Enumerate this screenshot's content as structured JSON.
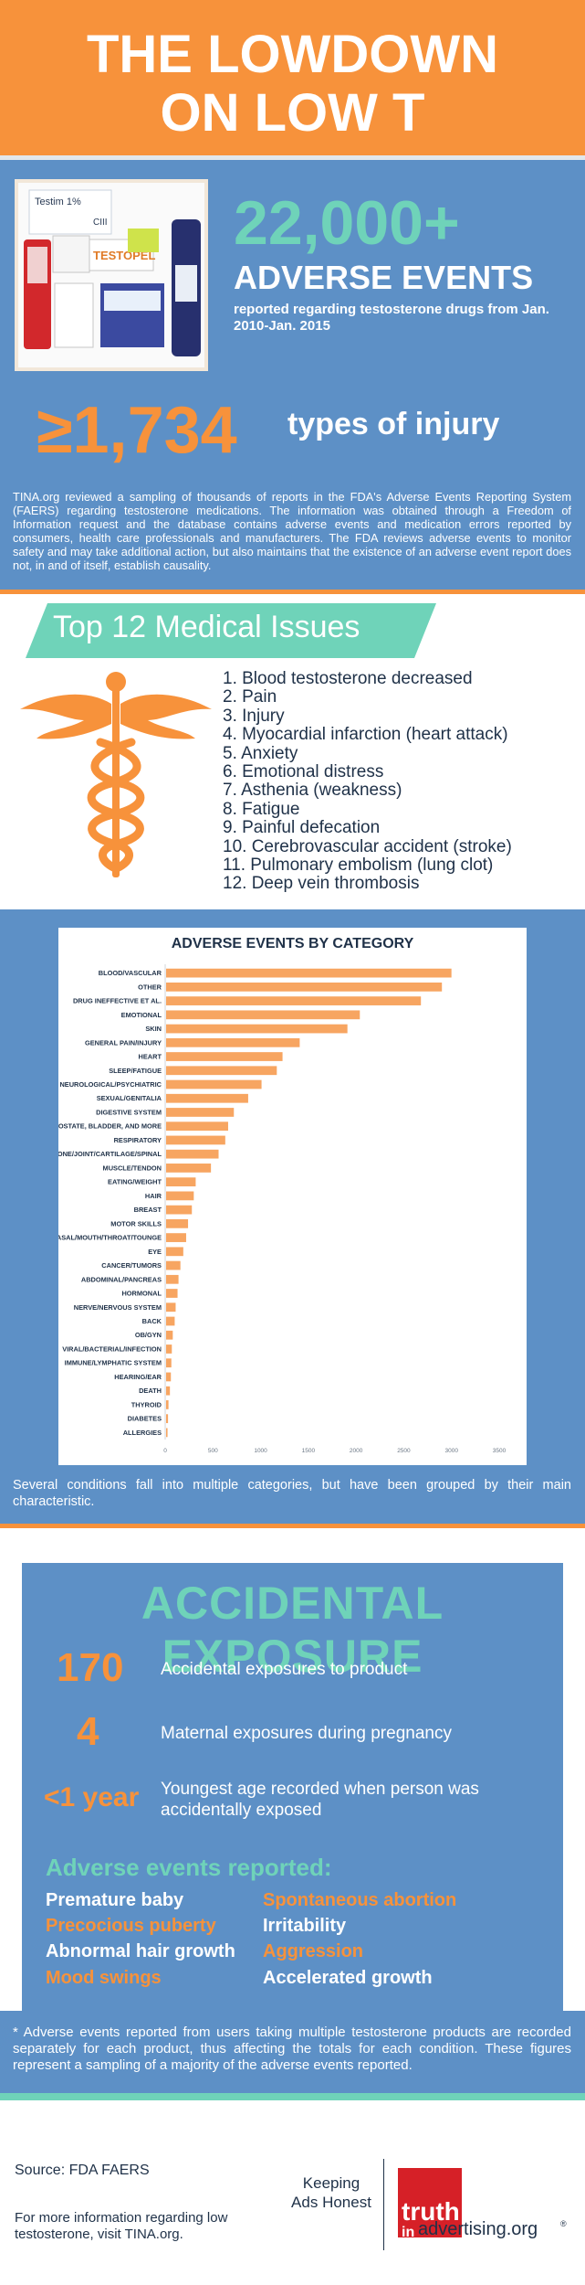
{
  "header": {
    "title_line1": "THE LOWDOWN",
    "title_line2": "ON LOW T"
  },
  "summary": {
    "adverse_events_count": "22,000+",
    "adverse_events_label": "ADVERSE EVENTS",
    "adverse_events_note": "reported regarding testosterone drugs from Jan. 2010-Jan. 2015",
    "injury_count": "≥1,734",
    "injury_label": "types of injury",
    "tina_text": "TINA.org reviewed a sampling of thousands of reports in the FDA's Adverse Events Reporting System (FAERS) regarding testosterone medications. The information was obtained through a Freedom of Information request and the database contains adverse events and medication errors reported by consumers, health care professionals and manufacturers. The FDA reviews adverse events to monitor safety and may take additional action, but also maintains that the existence of an adverse event report does not, in and of itself, establish causality."
  },
  "products": {
    "label1": "Testim 1%",
    "label2": "TESTOPEL",
    "label3": "CIII"
  },
  "issues": {
    "title": "Top 12 Medical Issues",
    "items": [
      "1. Blood testosterone decreased",
      "2. Pain",
      "3. Injury",
      "4. Myocardial infarction (heart attack)",
      "5. Anxiety",
      "6. Emotional distress",
      "7. Asthenia (weakness)",
      "8. Fatigue",
      "9. Painful defecation",
      "10. Cerebrovascular accident (stroke)",
      "11. Pulmonary embolism (lung clot)",
      "12. Deep vein thrombosis"
    ]
  },
  "chart_data": {
    "type": "bar",
    "orientation": "horizontal",
    "title": "ADVERSE EVENTS BY CATEGORY",
    "xlim": [
      0,
      3500
    ],
    "xticks": [
      0,
      500,
      1000,
      1500,
      2000,
      2500,
      3000,
      3500
    ],
    "categories": [
      "BLOOD/VASCULAR",
      "OTHER",
      "DRUG INEFFECTIVE ET AL.",
      "EMOTIONAL",
      "SKIN",
      "GENERAL PAIN/INJURY",
      "HEART",
      "SLEEP/FATIGUE",
      "NEUROLOGICAL/PSYCHIATRIC",
      "SEXUAL/GENITALIA",
      "DIGESTIVE SYSTEM",
      "PROSTATE, BLADDER, AND MORE",
      "RESPIRATORY",
      "BONE/JOINT/CARTILAGE/SPINAL",
      "MUSCLE/TENDON",
      "EATING/WEIGHT",
      "HAIR",
      "BREAST",
      "MOTOR SKILLS",
      "NASAL/MOUTH/THROAT/TOUNGE",
      "EYE",
      "CANCER/TUMORS",
      "ABDOMINAL/PANCREAS",
      "HORMONAL",
      "NERVE/NERVOUS SYSTEM",
      "BACK",
      "OB/GYN",
      "VIRAL/BACTERIAL/INFECTION",
      "IMMUNE/LYMPHATIC SYSTEM",
      "HEARING/EAR",
      "DEATH",
      "THYROID",
      "DIABETES",
      "ALLERGIES"
    ],
    "values": [
      2990,
      2890,
      2670,
      2030,
      1900,
      1400,
      1220,
      1160,
      1000,
      860,
      710,
      650,
      620,
      550,
      470,
      310,
      290,
      270,
      230,
      210,
      180,
      150,
      130,
      120,
      100,
      90,
      70,
      60,
      55,
      50,
      40,
      25,
      20,
      15
    ],
    "note": "Several conditions fall into multiple categories, but have been grouped by their main characteristic."
  },
  "accidental": {
    "title": "ACCIDENTAL EXPOSURE",
    "stats": [
      {
        "value": "170",
        "label": "Accidental exposures to product"
      },
      {
        "value": "4",
        "label": "Maternal exposures during pregnancy"
      },
      {
        "value": "<1 year",
        "label": "Youngest age recorded when person was accidentally exposed"
      }
    ],
    "events_title": "Adverse events reported:",
    "events_left": [
      "Premature baby",
      "Precocious puberty",
      "Abnormal hair growth",
      "Mood swings"
    ],
    "events_right": [
      "Spontaneous abortion",
      "Irritability",
      "Aggression",
      "Accelerated growth"
    ],
    "footnote": "* Adverse events reported from users taking multiple testosterone products are recorded separately for each product, thus affecting the totals for each condition. These figures represent a sampling of a majority of the adverse events reported."
  },
  "footer": {
    "source": "Source: FDA FAERS",
    "more_info": "For more information regarding low testosterone, visit TINA.org.",
    "tagline": "Keeping Ads Honest",
    "logo_main": "truth",
    "logo_in": "in",
    "logo_rest": "advertising.org",
    "logo_reg": "®"
  },
  "colors": {
    "orange": "#f7923b",
    "teal": "#6fd3b9",
    "blue": "#5d90c6",
    "navy": "#1f3148",
    "bar": "#f7a561"
  }
}
